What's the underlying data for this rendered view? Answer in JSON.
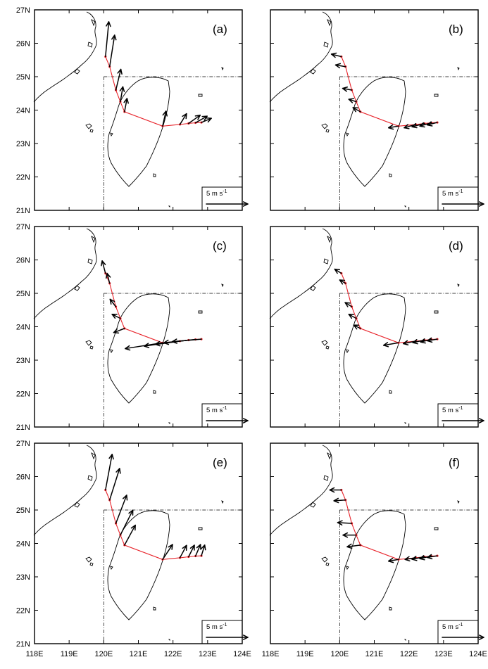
{
  "chart_data": {
    "type": "vector-map",
    "axes": {
      "x_ticks": [
        "118E",
        "119E",
        "120E",
        "121E",
        "122E",
        "123E",
        "124E"
      ],
      "y_ticks": [
        "21N",
        "22N",
        "23N",
        "24N",
        "25N",
        "26N",
        "27N"
      ],
      "xlim": [
        118,
        124
      ],
      "ylim": [
        21,
        27
      ],
      "reference_lines": {
        "lon": 120,
        "lat": 25
      }
    },
    "colors": {
      "track": "#e8232a",
      "arrow": "#000000",
      "coast": "#000000",
      "frame": "#000000"
    },
    "scale_arrow": {
      "label": "5 m s",
      "superscript": "-1",
      "magnitude": 5
    },
    "stations": [
      {
        "lon": 120.05,
        "lat": 25.6
      },
      {
        "lon": 120.17,
        "lat": 25.3
      },
      {
        "lon": 120.35,
        "lat": 24.6
      },
      {
        "lon": 120.48,
        "lat": 24.25
      },
      {
        "lon": 120.6,
        "lat": 23.95
      },
      {
        "lon": 121.7,
        "lat": 23.52
      },
      {
        "lon": 122.2,
        "lat": 23.57
      },
      {
        "lon": 122.45,
        "lat": 23.6
      },
      {
        "lon": 122.65,
        "lat": 23.62
      },
      {
        "lon": 122.82,
        "lat": 23.63
      }
    ],
    "panels": [
      {
        "label": "(a)",
        "vectors": [
          [
            0.4,
            4.2
          ],
          [
            0.6,
            3.8
          ],
          [
            0.6,
            2.5
          ],
          [
            0.3,
            1.8
          ],
          [
            0.3,
            1.6
          ],
          [
            0.4,
            1.8
          ],
          [
            0.8,
            1.3
          ],
          [
            1.4,
            1.0
          ],
          [
            1.4,
            0.8
          ],
          [
            1.2,
            0.5
          ]
        ]
      },
      {
        "label": "(b)",
        "vectors": [
          [
            -1.2,
            0.3
          ],
          [
            -1.2,
            0.2
          ],
          [
            -1.1,
            0.2
          ],
          [
            -0.9,
            0.3
          ],
          [
            -0.9,
            0.5
          ],
          [
            -1.2,
            -0.2
          ],
          [
            -1.4,
            -0.4
          ],
          [
            -1.5,
            -0.4
          ],
          [
            -1.4,
            -0.4
          ],
          [
            -1.2,
            -0.3
          ]
        ]
      },
      {
        "label": "(c)",
        "vectors": [
          [
            -0.4,
            1.5
          ],
          [
            -0.3,
            1.2
          ],
          [
            -0.7,
            0.9
          ],
          [
            -1.0,
            0.5
          ],
          [
            -1.3,
            -0.5
          ],
          [
            -4.5,
            -0.7
          ],
          [
            -4.3,
            -0.6
          ],
          [
            -4.0,
            -0.5
          ],
          [
            -3.8,
            -0.4
          ],
          [
            -3.5,
            -0.3
          ]
        ]
      },
      {
        "label": "(d)",
        "vectors": [
          [
            -0.8,
            0.5
          ],
          [
            -0.7,
            0.4
          ],
          [
            -0.8,
            0.5
          ],
          [
            -0.9,
            0.5
          ],
          [
            -0.8,
            0.4
          ],
          [
            -1.8,
            -0.3
          ],
          [
            -1.5,
            -0.3
          ],
          [
            -1.4,
            -0.3
          ],
          [
            -1.3,
            -0.3
          ],
          [
            -1.2,
            -0.2
          ]
        ]
      },
      {
        "label": "(e)",
        "vectors": [
          [
            0.8,
            4.3
          ],
          [
            1.2,
            3.8
          ],
          [
            1.3,
            3.4
          ],
          [
            1.5,
            3.0
          ],
          [
            1.3,
            2.4
          ],
          [
            1.2,
            1.8
          ],
          [
            0.8,
            1.5
          ],
          [
            0.7,
            1.4
          ],
          [
            0.6,
            1.4
          ],
          [
            0.4,
            1.3
          ]
        ]
      },
      {
        "label": "(f)",
        "vectors": [
          [
            -1.4,
            0.0
          ],
          [
            -1.4,
            -0.1
          ],
          [
            -1.7,
            0.1
          ],
          [
            -1.6,
            0.0
          ],
          [
            -1.6,
            -0.2
          ],
          [
            -1.2,
            -0.2
          ],
          [
            -1.3,
            -0.2
          ],
          [
            -1.5,
            -0.3
          ],
          [
            -1.4,
            -0.3
          ],
          [
            -1.2,
            -0.2
          ]
        ]
      }
    ]
  }
}
